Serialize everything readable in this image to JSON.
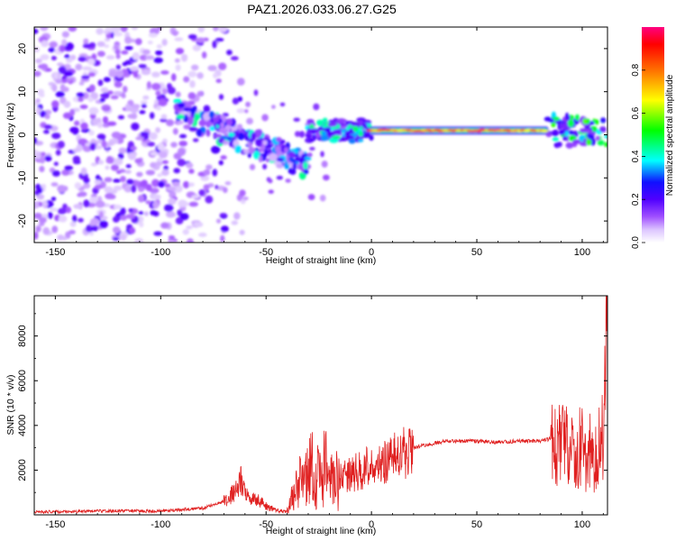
{
  "figure": {
    "title": "PAZ1.2026.033.06.27.G25"
  },
  "colors": {
    "snr_line": "#e02020",
    "axis": "#000000",
    "background": "#ffffff"
  },
  "chart_data": [
    {
      "type": "heatmap",
      "name": "spectrogram",
      "xlabel": "Height of straight line (km)",
      "ylabel": "Frequency (Hz)",
      "xlim": [
        -160,
        112
      ],
      "ylim": [
        -25,
        25
      ],
      "xticks": [
        -150,
        -100,
        -50,
        0,
        50,
        100
      ],
      "yticks": [
        -20,
        -10,
        0,
        10,
        20
      ],
      "colorbar": {
        "label": "Normalized spectral amplitude",
        "range": [
          0.0,
          1.0
        ],
        "ticks": [
          0.0,
          0.2,
          0.4,
          0.6,
          0.8
        ],
        "tick_labels": [
          "0.0",
          "0.2",
          "0.4",
          "0.6",
          "0.8"
        ],
        "colormap": [
          "#ffffff",
          "#cc99ff",
          "#8000ff",
          "#2000ff",
          "#00ffff",
          "#00ff00",
          "#ffff00",
          "#ff8000",
          "#ff0000",
          "#ff0080"
        ]
      },
      "regions": [
        {
          "name": "noise",
          "x_range": [
            -160,
            -75
          ],
          "f_range": [
            -25,
            25
          ],
          "amplitude": 0.2
        },
        {
          "name": "descending-track",
          "x_range": [
            -92,
            -30
          ],
          "f_start": 5,
          "f_end": -7,
          "amplitude": 0.5
        },
        {
          "name": "transition",
          "x_range": [
            -30,
            0
          ],
          "f_center": 1,
          "amplitude": 0.55
        },
        {
          "name": "stable-line",
          "x_range": [
            0,
            83
          ],
          "f_center": 1,
          "amplitude": 0.95
        },
        {
          "name": "upper-end",
          "x_range": [
            83,
            112
          ],
          "f_center": 1,
          "amplitude": 0.6
        }
      ]
    },
    {
      "type": "line",
      "name": "snr",
      "xlabel": "Height of straight line (km)",
      "ylabel": "SNR (10 * v/v)",
      "xlim": [
        -160,
        112
      ],
      "ylim": [
        0,
        9800
      ],
      "xticks": [
        -150,
        -100,
        -50,
        0,
        50,
        100
      ],
      "yticks": [
        2000,
        4000,
        6000,
        8000
      ],
      "series": [
        {
          "name": "SNR",
          "x": [
            -160,
            -140,
            -120,
            -100,
            -80,
            -70,
            -65,
            -62,
            -60,
            -58,
            -55,
            -50,
            -45,
            -40,
            -38,
            -35,
            -30,
            -28,
            -25,
            -22,
            -20,
            -15,
            -10,
            -5,
            0,
            5,
            10,
            15,
            20,
            25,
            30,
            35,
            40,
            50,
            60,
            70,
            80,
            85,
            88,
            90,
            92,
            94,
            96,
            98,
            100,
            102,
            104,
            106,
            108,
            110,
            112
          ],
          "y": [
            120,
            150,
            180,
            170,
            300,
            600,
            1000,
            1500,
            1100,
            900,
            700,
            400,
            200,
            150,
            700,
            1300,
            1700,
            2200,
            1600,
            2200,
            1500,
            1600,
            1800,
            2000,
            2200,
            2300,
            2500,
            2800,
            3000,
            3100,
            3200,
            3300,
            3300,
            3300,
            3250,
            3300,
            3300,
            3400,
            3200,
            3000,
            3800,
            2700,
            3100,
            2400,
            2700,
            2300,
            2600,
            2100,
            1800,
            2600,
            9600
          ]
        }
      ]
    }
  ]
}
